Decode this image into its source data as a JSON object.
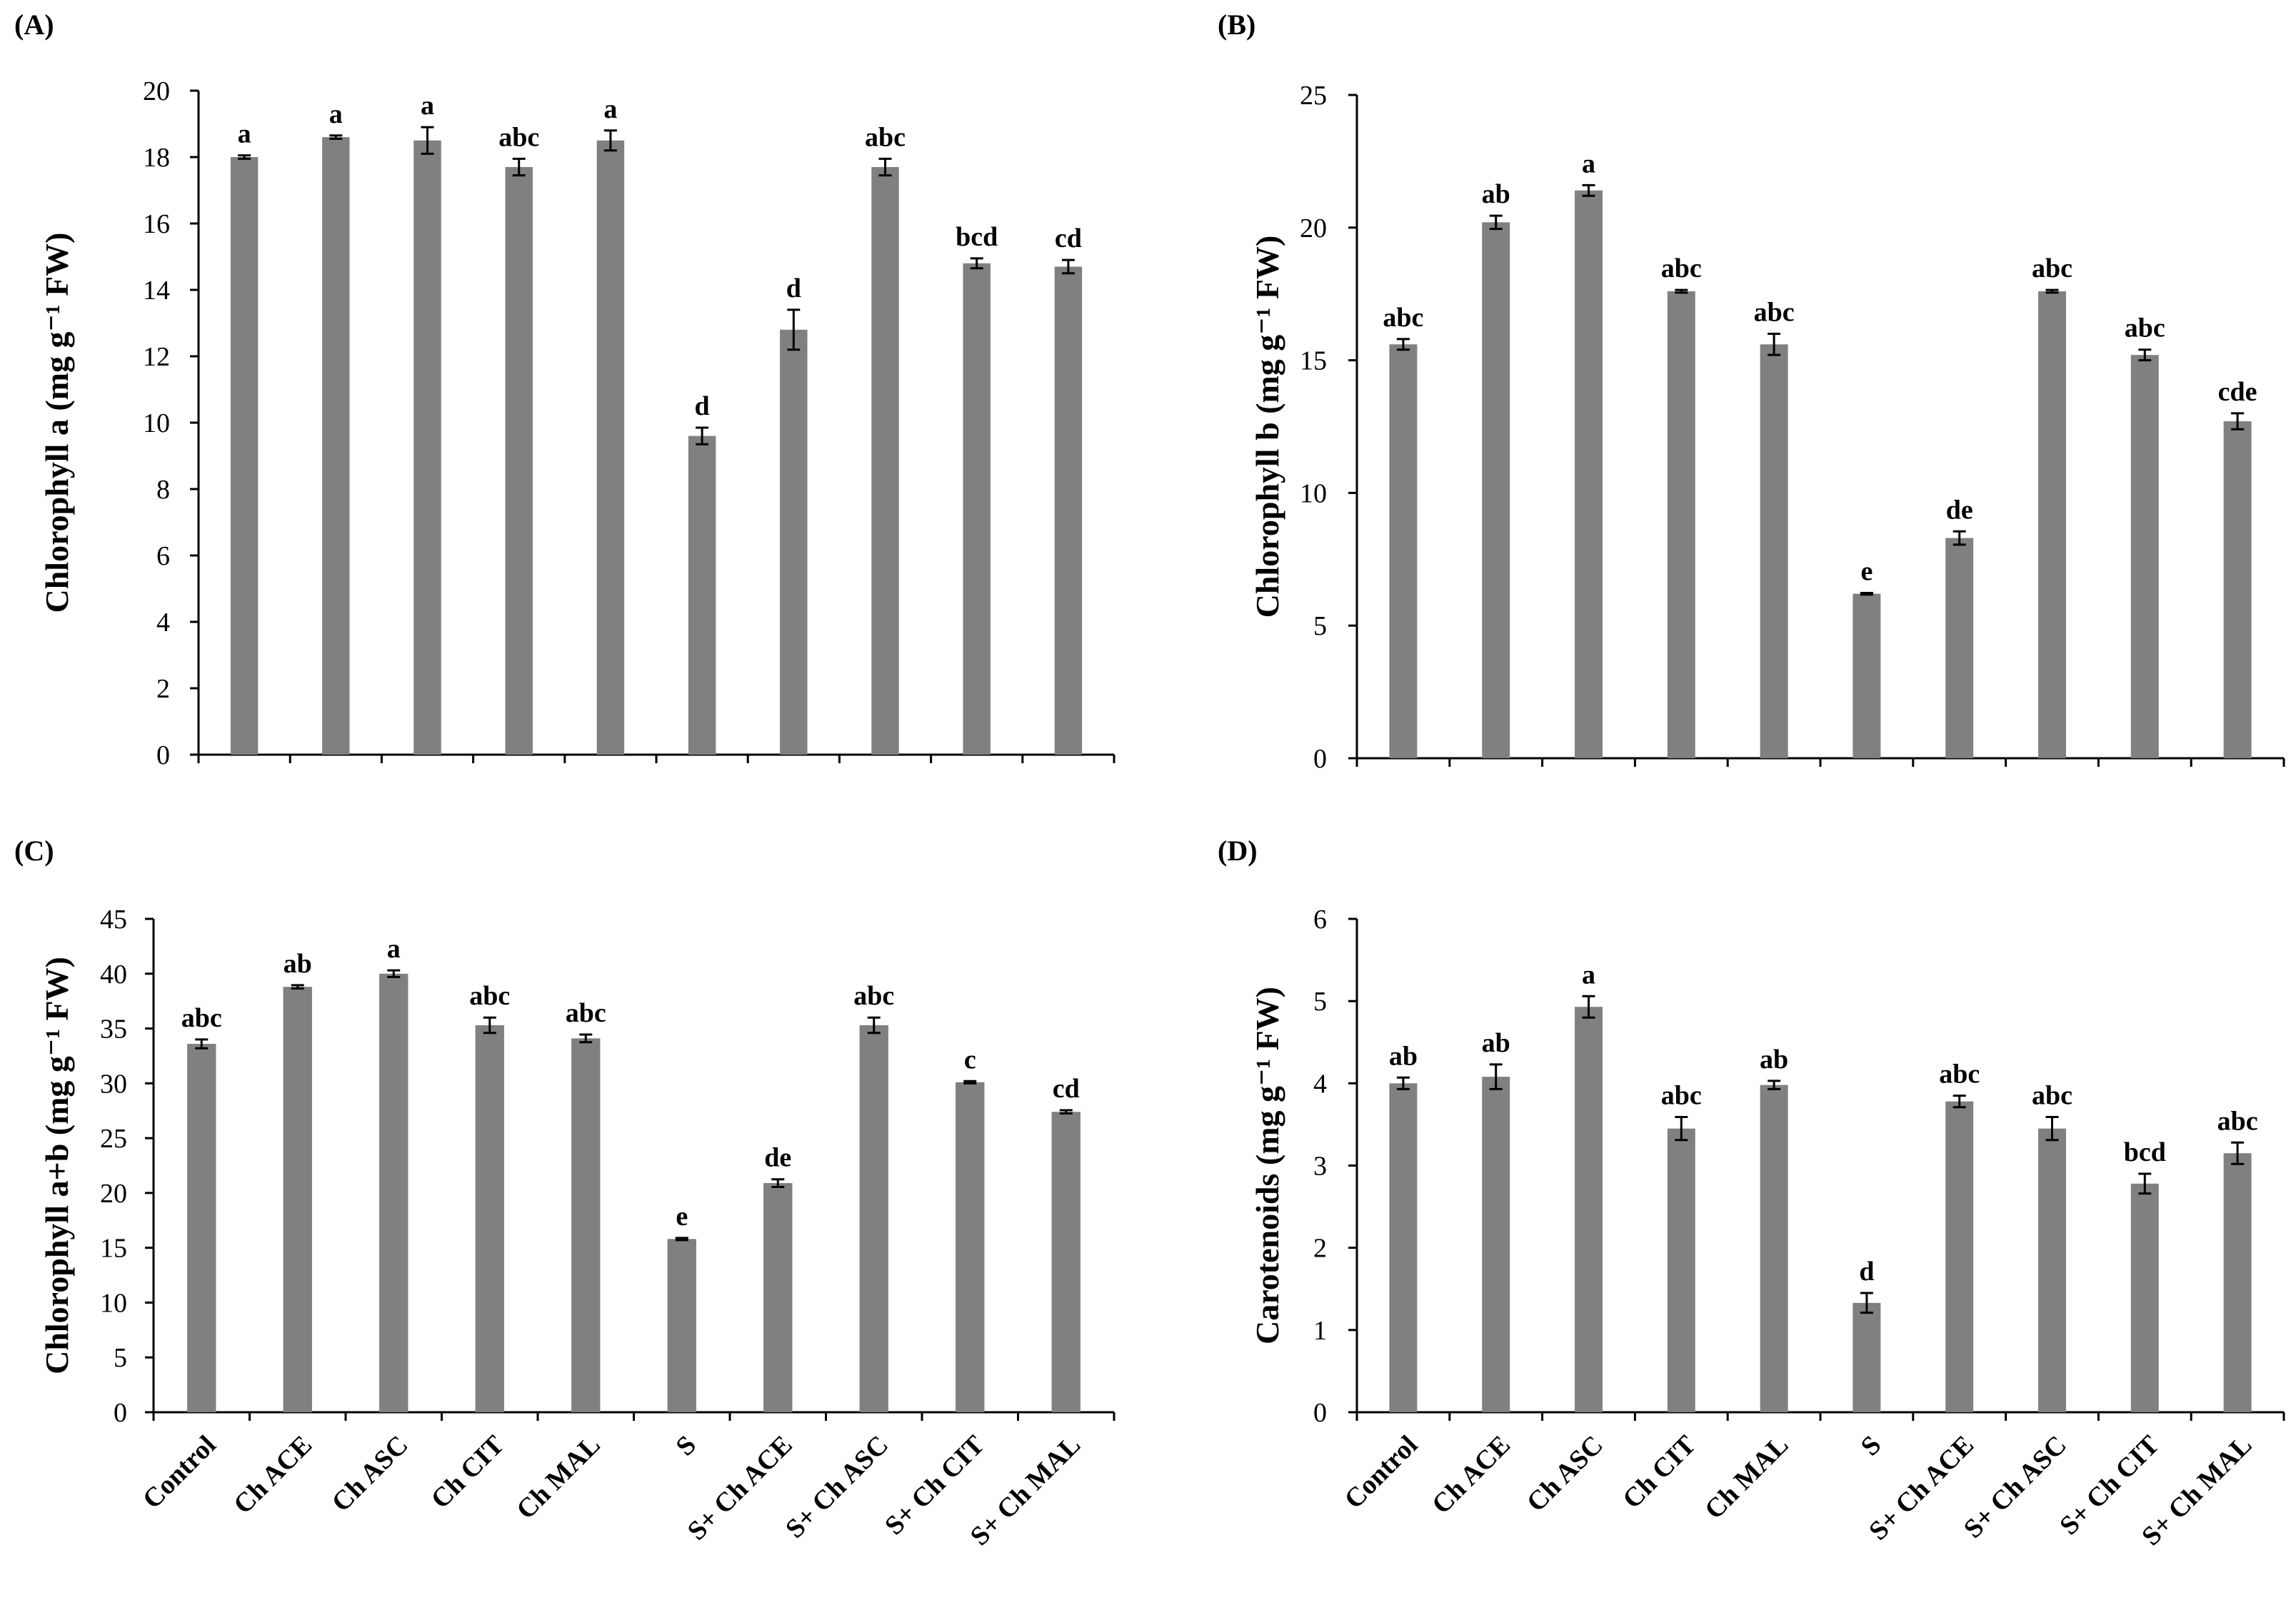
{
  "chart_data": [
    {
      "type": "bar",
      "panel": "(A)",
      "ylabel": "Chlorophyll a (mg g⁻¹ FW)",
      "ylim": [
        0,
        20
      ],
      "yticks": [
        0,
        2,
        4,
        6,
        8,
        10,
        12,
        14,
        16,
        18,
        20
      ],
      "categories": [
        "Control",
        "Ch ACE",
        "Ch ASC",
        "Ch CIT",
        "Ch MAL",
        "S",
        "S+ Ch ACE",
        "S+ Ch ASC",
        "S+ Ch CIT",
        "S+ Ch MAL"
      ],
      "show_category_labels": false,
      "values": [
        18.0,
        18.6,
        18.5,
        17.7,
        18.5,
        9.6,
        12.8,
        17.7,
        14.8,
        14.7
      ],
      "errors": [
        0.05,
        0.05,
        0.4,
        0.25,
        0.3,
        0.25,
        0.6,
        0.25,
        0.15,
        0.2
      ],
      "letters": [
        "a",
        "a",
        "a",
        "abc",
        "a",
        "d",
        "d",
        "abc",
        "bcd",
        "cd"
      ]
    },
    {
      "type": "bar",
      "panel": "(B)",
      "ylabel": "Chlorophyll b (mg g⁻¹ FW)",
      "ylim": [
        0,
        25
      ],
      "yticks": [
        0,
        5,
        10,
        15,
        20,
        25
      ],
      "categories": [
        "Control",
        "Ch ACE",
        "Ch ASC",
        "Ch CIT",
        "Ch MAL",
        "S",
        "S+ Ch ACE",
        "S+ Ch ASC",
        "S+ Ch CIT",
        "S+ Ch MAL"
      ],
      "show_category_labels": false,
      "values": [
        15.6,
        20.2,
        21.4,
        17.6,
        15.6,
        6.2,
        8.3,
        17.6,
        15.2,
        12.7
      ],
      "errors": [
        0.2,
        0.25,
        0.2,
        0.05,
        0.4,
        0.03,
        0.25,
        0.05,
        0.2,
        0.3
      ],
      "letters": [
        "abc",
        "ab",
        "a",
        "abc",
        "abc",
        "e",
        "de",
        "abc",
        "abc",
        "cde"
      ]
    },
    {
      "type": "bar",
      "panel": "(C)",
      "ylabel": "Chlorophyll a+b (mg g⁻¹ FW)",
      "ylim": [
        0,
        45
      ],
      "yticks": [
        0,
        5,
        10,
        15,
        20,
        25,
        30,
        35,
        40,
        45
      ],
      "categories": [
        "Control",
        "Ch ACE",
        "Ch ASC",
        "Ch CIT",
        "Ch MAL",
        "S",
        "S+ Ch ACE",
        "S+ Ch ASC",
        "S+ Ch CIT",
        "S+ Ch MAL"
      ],
      "show_category_labels": true,
      "values": [
        33.6,
        38.8,
        40.0,
        35.3,
        34.1,
        15.8,
        20.9,
        35.3,
        30.1,
        27.4
      ],
      "errors": [
        0.4,
        0.15,
        0.3,
        0.7,
        0.35,
        0.1,
        0.35,
        0.7,
        0.1,
        0.15
      ],
      "letters": [
        "abc",
        "ab",
        "a",
        "abc",
        "abc",
        "e",
        "de",
        "abc",
        "c",
        "cd"
      ]
    },
    {
      "type": "bar",
      "panel": "(D)",
      "ylabel": "Carotenoids (mg g⁻¹ FW)",
      "ylim": [
        0,
        6
      ],
      "yticks": [
        0,
        1,
        2,
        3,
        4,
        5,
        6
      ],
      "categories": [
        "Control",
        "Ch ACE",
        "Ch ASC",
        "Ch CIT",
        "Ch MAL",
        "S",
        "S+ Ch ACE",
        "S+ Ch ASC",
        "S+ Ch CIT",
        "S+ Ch MAL"
      ],
      "show_category_labels": true,
      "values": [
        4.0,
        4.08,
        4.93,
        3.45,
        3.98,
        1.33,
        3.78,
        3.45,
        2.78,
        3.15
      ],
      "errors": [
        0.07,
        0.15,
        0.13,
        0.14,
        0.05,
        0.12,
        0.07,
        0.14,
        0.12,
        0.13
      ],
      "letters": [
        "ab",
        "ab",
        "a",
        "abc",
        "ab",
        "d",
        "abc",
        "abc",
        "bcd",
        "abc"
      ]
    }
  ],
  "style": {
    "bar_color": "#808080",
    "axis_color": "#000000",
    "text_color": "#000000"
  }
}
